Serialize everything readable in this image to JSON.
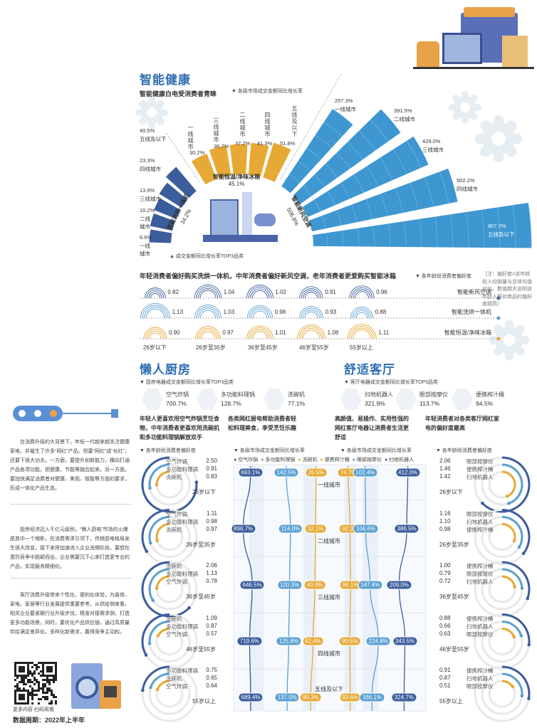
{
  "health": {
    "title": "智能健康",
    "subtitle": "智能健康白电受消费者青睐",
    "market_note": "▼ 各级市场成交金额同比增长率",
    "top3_note": "▲ 成交金额同比增长率TOP3品类"
  },
  "preference_note": "［注：偏好度=该年龄段人均销量与总体均值对比，数值越大说明该年龄人群对商品的偏好度越高］",
  "kitchen": {
    "title": "懒人厨房",
    "subtitle": "▼ 厨房电器成交金额同比增长率TOP3品类",
    "products": [
      {
        "name": "空气炸锅",
        "value": "700.7%",
        "icon": "air-fryer"
      },
      {
        "name": "多功能料理锅",
        "value": "128.7%",
        "icon": "pot"
      },
      {
        "name": "洗碗机",
        "value": "77.1%",
        "icon": "dishwasher"
      }
    ],
    "desc1": "年轻人更喜欢用空气炸锅烹饪食物，中年消费者更喜欢用洗碗机和多功能料理锅解放双手",
    "desc2": "各类网红厨电帮助消费者轻松料理美食，享受烹饪乐趣",
    "age_note": "▼ 各年龄段消费者偏好度",
    "market_note": "▼ 各级市场成交金额同比增长率"
  },
  "living": {
    "title": "舒适客厅",
    "subtitle": "▼ 客厅电器成交金额同比增长率TOP3品类",
    "products": [
      {
        "name": "扫地机器人",
        "value": "321.9%",
        "icon": "robot-vacuum"
      },
      {
        "name": "眼部按摩仪",
        "value": "113.7%",
        "icon": "eye-massager"
      },
      {
        "name": "便携榨汁桶",
        "value": "94.5%",
        "icon": "juicer"
      }
    ],
    "desc1": "高颜值、易操作、实用性强的网红客厅电器让消费者生活更舒适",
    "desc2": "年轻消费者对各类客厅网红家电的偏好度最高",
    "market_note": "▼ 各级市场成交金额同比增长率",
    "age_note": "▼ 各年龄段消费者偏好度"
  },
  "sidebar": {
    "paragraphs": [
      "在消费升级的大背景下，年轻一代越来越关注健康家电，并催生了许多“网红”产品。但要“网红”成“长红”，还要下很大功夫。一方面，要提升创新能力，横向打通产品各项功能，把健康、节能等融合起来。另一方面，要加快满足消费者对健康、美观、智能等方面的要求，形成一体化产品生态。",
      "厨房经济迈入千亿元级别，“懒人厨电”市场的火爆是其中一个缩影。在消费需求引领下，传统厨电格局发生很大改变，接下来将加速进入企业洗牌阶段。要想在激烈竞争中脱颖而出，企业需要沉下心来打造更专业的产品，实现服务精细化。",
      "客厅消费升级带来个性化、便利化体验，为装修、家电、家居等行业发展提供重要参考。从供给侧来看，相关企业要紧跟行业升级步伐，精准对接需求侧，打造更多功能场景。同时，要优化产品供应链，通过高质量供给满足差异化、多样化新需求，赢得竞争主动权。"
    ],
    "qr_caption": "更多内容 扫码观看",
    "period": "数据周期：2022年上半年"
  },
  "colors": {
    "title": "#2f6fb3",
    "dark_blue": "#3b5d9b",
    "mid_blue": "#5ba0d2",
    "orange": "#e6a935",
    "fan_blue": "#3e97d1"
  },
  "chart_data": [
    {
      "type": "bar",
      "layout": "radial",
      "groups": [
        {
          "name": "智能洗烘一体机",
          "total": "34.2%",
          "color": "#3b5d9b",
          "categories": [
            "一线城市",
            "二线城市",
            "三线城市",
            "四线城市",
            "五线及以下"
          ],
          "values": [
            6.6,
            10.2,
            13.9,
            23.3,
            40.5
          ]
        },
        {
          "name": "智能恒温/净味冰箱",
          "total": "45.1%",
          "color": "#e6a935",
          "categories": [
            "一线城市",
            "三线城市",
            "二线城市",
            "四线城市",
            "五线及以下"
          ],
          "values": [
            30.2,
            36.7,
            37.2,
            41.3,
            51.8
          ]
        },
        {
          "name": "智能新风空调",
          "total": "506.8%",
          "color": "#3e97d1",
          "categories": [
            "一线城市",
            "二线城市",
            "三线城市",
            "四线城市",
            "五线及以下"
          ],
          "values": [
            257.3,
            391.5,
            429.0,
            502.2,
            807.7
          ]
        }
      ]
    },
    {
      "type": "bar",
      "layout": "concentric-arcs",
      "title": "年轻消费者偏好购买洗烘一体机，中年消费者偏好新风空调，老年消费者更爱购买智能冰箱",
      "legend_title": "▼ 各年龄段消费者偏好度",
      "categories": [
        "26岁以下",
        "26岁至35岁",
        "36岁至45岁",
        "46岁至55岁",
        "55岁以上"
      ],
      "series": [
        {
          "name": "智能新风空调",
          "color": "#3b5d9b",
          "values": [
            0.82,
            1.04,
            1.02,
            0.91,
            0.96
          ]
        },
        {
          "name": "智能洗烘一体机",
          "color": "#5ba0d2",
          "values": [
            1.13,
            1.03,
            0.98,
            0.93,
            0.88
          ]
        },
        {
          "name": "智能恒温/净味冰箱",
          "color": "#e6a935",
          "values": [
            0.9,
            0.97,
            1.01,
            1.08,
            1.11
          ]
        }
      ]
    },
    {
      "type": "bar",
      "layout": "radial-rings",
      "panels": [
        {
          "age": "26岁以下",
          "items": [
            {
              "name": "空气炸锅",
              "value": 2.5
            },
            {
              "name": "多功能料理锅",
              "value": 0.91
            },
            {
              "name": "洗碗机",
              "value": 0.83
            }
          ]
        },
        {
          "age": "26岁至35岁",
          "items": [
            {
              "name": "空气炸锅",
              "value": 1.11
            },
            {
              "name": "多功能料理锅",
              "value": 0.98
            },
            {
              "name": "洗碗机",
              "value": 0.97
            }
          ]
        },
        {
          "age": "36岁至45岁",
          "items": [
            {
              "name": "洗碗机",
              "value": 2.06
            },
            {
              "name": "多功能料理锅",
              "value": 1.13
            },
            {
              "name": "空气炸锅",
              "value": 0.78
            }
          ]
        },
        {
          "age": "46岁至55岁",
          "items": [
            {
              "name": "洗碗机",
              "value": 1.09
            },
            {
              "name": "多功能料理锅",
              "value": 0.87
            },
            {
              "name": "空气炸锅",
              "value": 0.57
            }
          ]
        },
        {
          "age": "55岁以上",
          "items": [
            {
              "name": "多功能料理锅",
              "value": 0.75
            },
            {
              "name": "洗碗机",
              "value": 0.65
            },
            {
              "name": "空气炸锅",
              "value": 0.64
            }
          ]
        }
      ]
    },
    {
      "type": "line",
      "categories": [
        "一线城市",
        "二线城市",
        "三线城市",
        "四线城市",
        "五线及以下"
      ],
      "series": [
        {
          "name": "空气炸锅",
          "color": "#3b5d9b",
          "values": [
            693.1,
            896.7,
            646.5,
            719.6,
            689.4
          ]
        },
        {
          "name": "多功能料理锅",
          "color": "#5ba0d2",
          "values": [
            142.5,
            114.0,
            120.3,
            125.8,
            137.0
          ]
        },
        {
          "name": "洗碗机",
          "color": "#e6a935",
          "values": [
            26.5,
            32.1,
            40.0,
            62.4,
            90.3
          ]
        },
        {
          "name": "便携榨汁桶",
          "color": "#e6a935",
          "values": [
            74.7,
            92.2,
            96.1,
            90.5,
            93.6
          ]
        },
        {
          "name": "眼部按摩仪",
          "color": "#5ba0d2",
          "values": [
            102.4,
            106.6,
            147.4,
            224.8,
            166.1
          ]
        },
        {
          "name": "扫地机器人",
          "color": "#3b5d9b",
          "values": [
            412.0,
            386.5,
            209.0,
            343.5,
            324.7
          ]
        }
      ]
    },
    {
      "type": "bar",
      "layout": "radial-rings",
      "panels": [
        {
          "age": "26岁以下",
          "items": [
            {
              "name": "眼部按摩仪",
              "value": 2.06
            },
            {
              "name": "便携榨汁桶",
              "value": 1.46
            },
            {
              "name": "扫地机器人",
              "value": 1.42
            }
          ]
        },
        {
          "age": "26岁至35岁",
          "items": [
            {
              "name": "眼部按摩仪",
              "value": 1.16
            },
            {
              "name": "扫地机器人",
              "value": 1.1
            },
            {
              "name": "便携榨汁桶",
              "value": 0.98
            }
          ]
        },
        {
          "age": "36岁至45岁",
          "items": [
            {
              "name": "便携榨汁桶",
              "value": 1.0
            },
            {
              "name": "眼部按摩仪",
              "value": 0.79
            },
            {
              "name": "扫地机器人",
              "value": 0.72
            }
          ]
        },
        {
          "age": "46岁至55岁",
          "items": [
            {
              "name": "便携榨汁桶",
              "value": 0.88
            },
            {
              "name": "扫地机器人",
              "value": 0.66
            },
            {
              "name": "眼部按摩仪",
              "value": 0.63
            }
          ]
        },
        {
          "age": "55岁以上",
          "items": [
            {
              "name": "便携榨汁桶",
              "value": 0.91
            },
            {
              "name": "扫地机器人",
              "value": 0.87
            },
            {
              "name": "眼部按摩仪",
              "value": 0.51
            }
          ]
        }
      ]
    }
  ]
}
